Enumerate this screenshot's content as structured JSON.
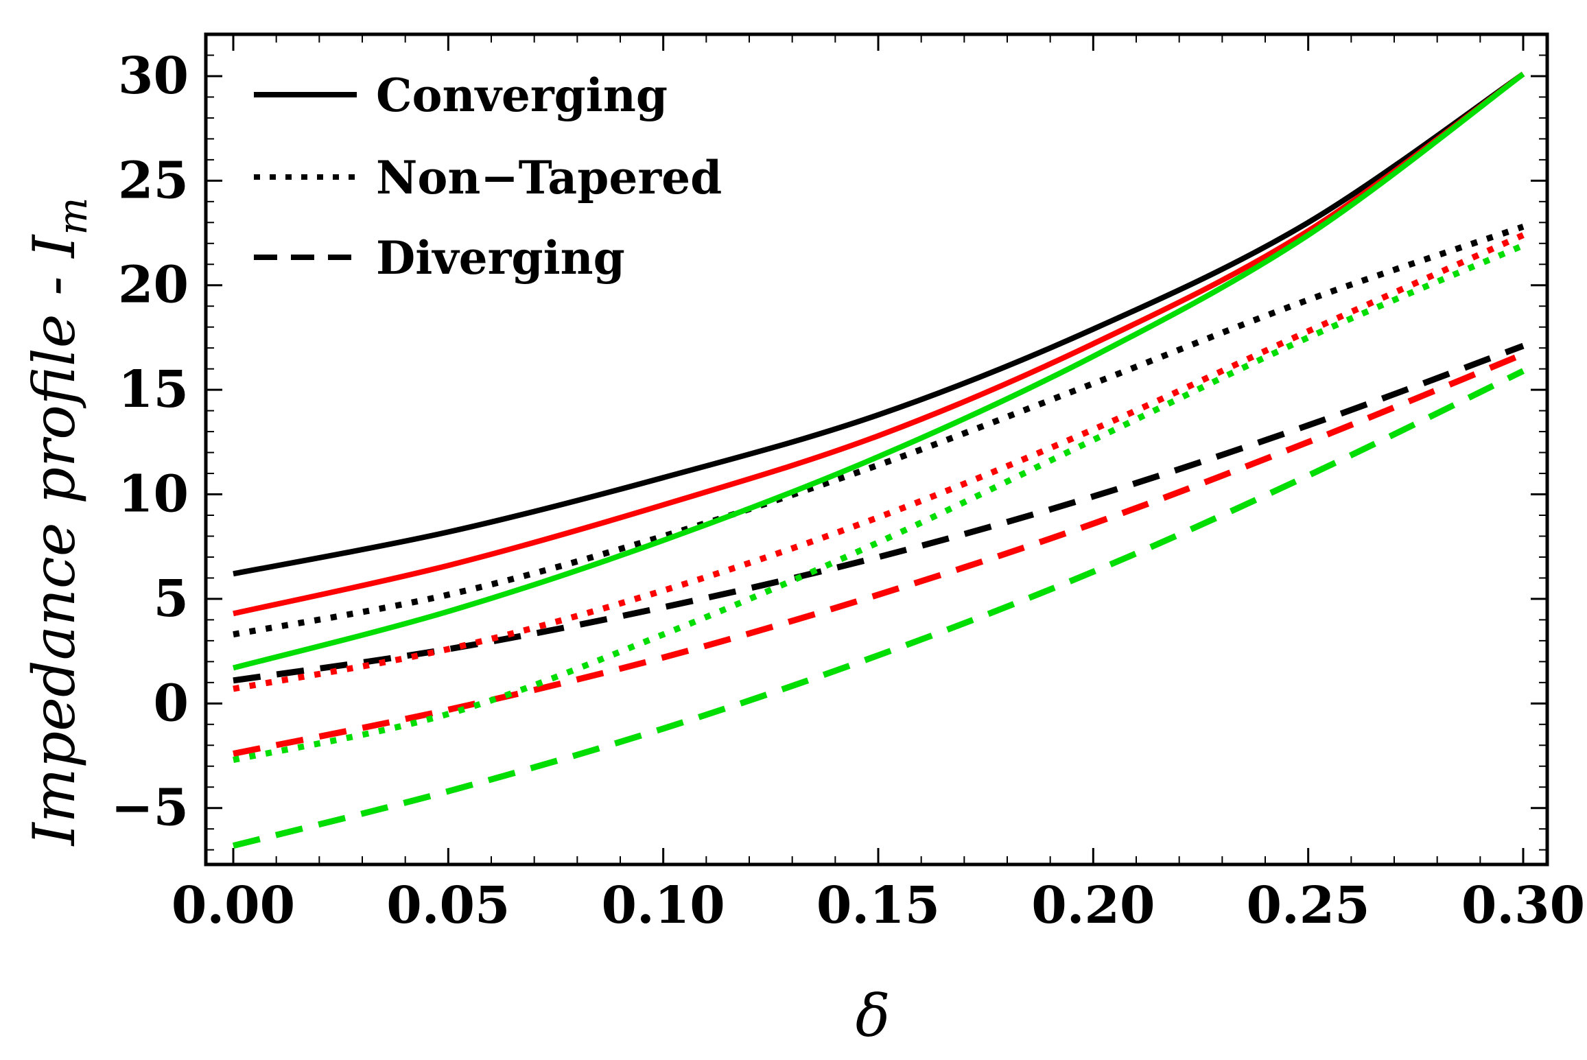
{
  "chart_data": {
    "type": "line",
    "title": "",
    "xlabel": "δ",
    "ylabel": "Impedance profile - I",
    "ylabel_subscript": "m",
    "xlim": [
      0.0,
      0.3
    ],
    "ylim": [
      -7.7,
      32.0
    ],
    "xticks": [
      0.0,
      0.05,
      0.1,
      0.15,
      0.2,
      0.25,
      0.3
    ],
    "xtick_labels": [
      "0.00",
      "0.05",
      "0.10",
      "0.15",
      "0.20",
      "0.25",
      "0.30"
    ],
    "yticks": [
      -5,
      0,
      5,
      10,
      15,
      20,
      25,
      30
    ],
    "ytick_labels": [
      "−5",
      "0",
      "5",
      "10",
      "15",
      "20",
      "25",
      "30"
    ],
    "legend": {
      "position": "top-left",
      "entries": [
        {
          "label": "Converging",
          "style": "solid"
        },
        {
          "label": "Non−Tapered",
          "style": "dotted"
        },
        {
          "label": "Diverging",
          "style": "dashed"
        }
      ]
    },
    "series": [
      {
        "name": "Converging (black)",
        "style": "solid",
        "color": "#000000",
        "x": [
          0.0,
          0.05,
          0.1,
          0.15,
          0.2,
          0.25,
          0.3
        ],
        "values": [
          6.2,
          8.2,
          10.8,
          13.8,
          17.9,
          23.0,
          30.1
        ]
      },
      {
        "name": "Converging (red)",
        "style": "solid",
        "color": "#ff0000",
        "x": [
          0.0,
          0.05,
          0.1,
          0.15,
          0.2,
          0.25,
          0.3
        ],
        "values": [
          4.3,
          6.6,
          9.5,
          12.8,
          17.2,
          22.6,
          30.1
        ]
      },
      {
        "name": "Converging (green)",
        "style": "solid",
        "color": "#00dd00",
        "x": [
          0.0,
          0.05,
          0.1,
          0.15,
          0.2,
          0.25,
          0.3
        ],
        "values": [
          1.7,
          4.4,
          7.8,
          11.8,
          16.6,
          22.4,
          30.1
        ]
      },
      {
        "name": "Non-Tapered (black)",
        "style": "dotted",
        "color": "#000000",
        "x": [
          0.0,
          0.05,
          0.1,
          0.15,
          0.2,
          0.25,
          0.3
        ],
        "values": [
          3.3,
          5.2,
          8.0,
          11.4,
          15.3,
          19.3,
          22.8
        ]
      },
      {
        "name": "Non-Tapered (red)",
        "style": "dotted",
        "color": "#ff0000",
        "x": [
          0.0,
          0.05,
          0.1,
          0.15,
          0.2,
          0.25,
          0.3
        ],
        "values": [
          0.7,
          2.6,
          5.4,
          8.9,
          13.1,
          17.8,
          22.4
        ]
      },
      {
        "name": "Non-Tapered (green)",
        "style": "dotted",
        "color": "#00dd00",
        "x": [
          0.0,
          0.05,
          0.1,
          0.15,
          0.2,
          0.25,
          0.3
        ],
        "values": [
          -2.7,
          -0.5,
          3.3,
          7.7,
          12.6,
          17.5,
          21.9
        ]
      },
      {
        "name": "Diverging (black)",
        "style": "dashed",
        "color": "#000000",
        "x": [
          0.0,
          0.05,
          0.1,
          0.15,
          0.2,
          0.25,
          0.3
        ],
        "values": [
          1.1,
          2.6,
          4.6,
          7.0,
          9.9,
          13.3,
          17.1
        ]
      },
      {
        "name": "Diverging (red)",
        "style": "dashed",
        "color": "#ff0000",
        "x": [
          0.0,
          0.05,
          0.1,
          0.15,
          0.2,
          0.25,
          0.3
        ],
        "values": [
          -2.4,
          -0.3,
          2.2,
          5.2,
          8.6,
          12.5,
          16.7
        ]
      },
      {
        "name": "Diverging (green)",
        "style": "dashed",
        "color": "#00dd00",
        "x": [
          0.0,
          0.05,
          0.1,
          0.15,
          0.2,
          0.25,
          0.3
        ],
        "values": [
          -6.8,
          -4.2,
          -1.2,
          2.3,
          6.3,
          10.9,
          15.9
        ]
      }
    ]
  }
}
